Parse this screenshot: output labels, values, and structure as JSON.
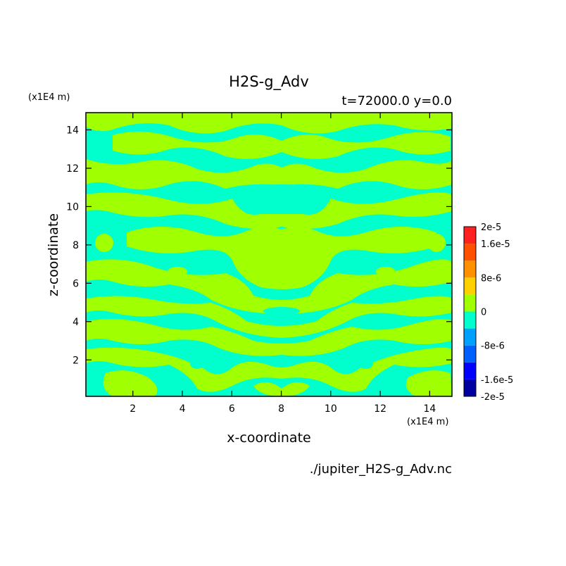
{
  "title": "H2S-g_Adv",
  "subtitle": "t=72000.0 y=0.0",
  "source_file": "./jupiter_H2S-g_Adv.nc",
  "chart_data": {
    "type": "heatmap",
    "title": "H2S-g_Adv",
    "subtitle": "t=72000.0 y=0.0",
    "xlabel": "x-coordinate",
    "ylabel": "z-coordinate",
    "x_unit": "(x1E4 m)",
    "y_unit": "(x1E4 m)",
    "xlim": [
      0.1,
      14.9
    ],
    "ylim": [
      0.1,
      14.9
    ],
    "x_ticks": [
      2,
      4,
      6,
      8,
      10,
      12,
      14
    ],
    "y_ticks": [
      2,
      4,
      6,
      8,
      10,
      12,
      14
    ],
    "x_tick_labels": [
      "2",
      "4",
      "6",
      "8",
      "10",
      "12",
      "14"
    ],
    "y_tick_labels": [
      "2",
      "4",
      "6",
      "8",
      "10",
      "12",
      "14"
    ],
    "colorbar": {
      "levels": [
        -2e-05,
        -1.6e-05,
        -1.2e-05,
        -8e-06,
        -4e-06,
        0,
        4e-06,
        8e-06,
        1.2e-05,
        1.6e-05,
        2e-05
      ],
      "colors": [
        "#0000a0",
        "#0000ff",
        "#0060ff",
        "#00a0ff",
        "#00ffcc",
        "#a0ff00",
        "#ffd000",
        "#ff9000",
        "#ff5000",
        "#ff2020"
      ],
      "labels": [
        "-2e-5",
        "-1.6e-5",
        "-8e-6",
        "0",
        "8e-6",
        "1.6e-5",
        "2e-5"
      ],
      "label_values": [
        -2e-05,
        -1.6e-05,
        -8e-06,
        0,
        8e-06,
        1.6e-05,
        2e-05
      ]
    },
    "field_colors": {
      "negative": "#00ffcc",
      "positive": "#a0ff00"
    },
    "legend": "right"
  }
}
